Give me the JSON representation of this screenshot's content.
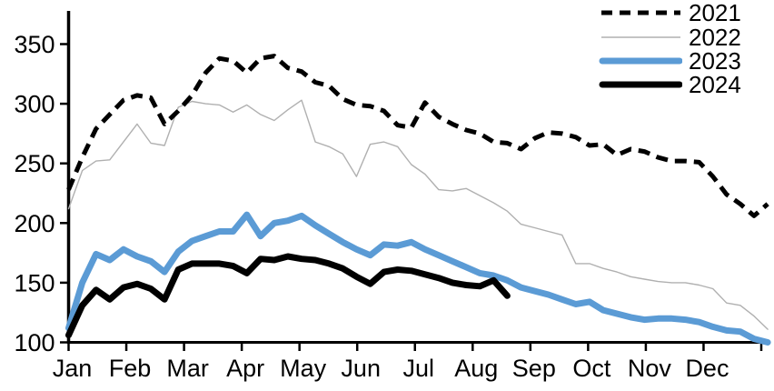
{
  "chart_data": {
    "type": "line",
    "title": "",
    "grid": false,
    "legend_position": "top-right",
    "x_axis": {
      "unit": "weekly",
      "tick_labels": [
        "Jan",
        "Feb",
        "Mar",
        "Apr",
        "May",
        "Jun",
        "Jul",
        "Aug",
        "Sep",
        "Oct",
        "Nov",
        "Dec"
      ]
    },
    "y_axis": {
      "ticks": [
        100,
        150,
        200,
        250,
        300,
        350
      ],
      "min": 100,
      "max": 380
    },
    "series": [
      {
        "name": "2021",
        "color": "#000000",
        "style": "dashed",
        "stroke_width": 5,
        "values": [
          228,
          255,
          279,
          291,
          303,
          307,
          305,
          283,
          294,
          307,
          326,
          338,
          336,
          326,
          338,
          340,
          330,
          327,
          318,
          315,
          304,
          299,
          298,
          294,
          282,
          280,
          301,
          289,
          283,
          278,
          275,
          268,
          267,
          262,
          271,
          276,
          275,
          272,
          265,
          266,
          257,
          262,
          260,
          255,
          252,
          252,
          251,
          239,
          224,
          216,
          206,
          216
        ]
      },
      {
        "name": "2022",
        "color": "#b0b0b0",
        "style": "solid",
        "stroke_width": 1.4,
        "values": [
          212,
          244,
          252,
          253,
          268,
          283,
          267,
          265,
          297,
          302,
          300,
          299,
          293,
          299,
          291,
          286,
          295,
          303,
          268,
          264,
          258,
          239,
          266,
          268,
          264,
          249,
          241,
          228,
          227,
          229,
          223,
          217,
          210,
          199,
          196,
          193,
          190,
          166,
          166,
          162,
          159,
          155,
          153,
          151,
          150,
          150,
          148,
          145,
          133,
          131,
          122,
          111
        ]
      },
      {
        "name": "2023",
        "color": "#5b9bd5",
        "style": "solid",
        "stroke_width": 7,
        "values": [
          112,
          150,
          174,
          169,
          178,
          172,
          168,
          159,
          176,
          185,
          189,
          193,
          193,
          207,
          189,
          200,
          202,
          206,
          198,
          191,
          184,
          178,
          173,
          182,
          181,
          184,
          178,
          173,
          168,
          163,
          158,
          156,
          152,
          146,
          143,
          140,
          136,
          132,
          134,
          127,
          124,
          121,
          119,
          120,
          120,
          119,
          117,
          113,
          110,
          109,
          103,
          100
        ]
      },
      {
        "name": "2024",
        "color": "#000000",
        "style": "solid",
        "stroke_width": 7,
        "values": [
          106,
          131,
          144,
          136,
          146,
          149,
          145,
          136,
          161,
          166,
          166,
          166,
          164,
          158,
          170,
          169,
          172,
          170,
          169,
          166,
          162,
          155,
          149,
          159,
          161,
          160,
          157,
          154,
          150,
          148,
          147,
          152,
          139
        ]
      }
    ]
  }
}
